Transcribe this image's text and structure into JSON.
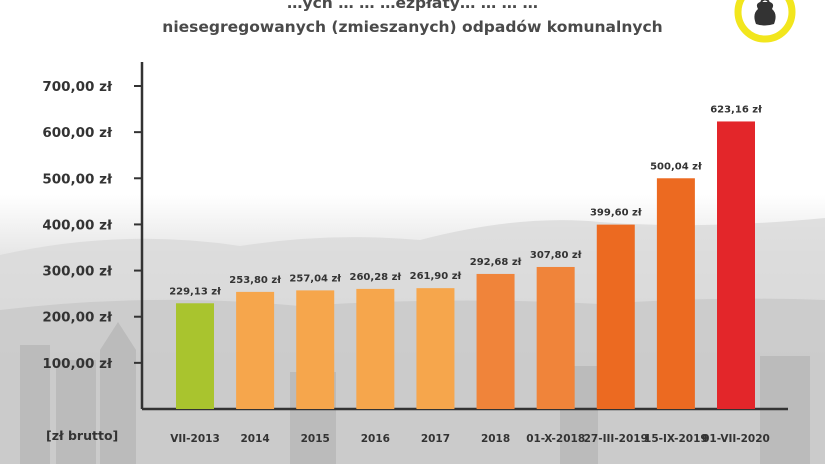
{
  "header": {
    "title_line1": "…ych … … …ezpłaty… … … …",
    "title_line2": "niesegregowanych (zmieszanych) odpadów komunalnych"
  },
  "colors": {
    "green": "#a9c42e",
    "orange_light": "#f6a64c",
    "orange_mid": "#f0843a",
    "orange_deep": "#ec6a21",
    "red": "#e3262a",
    "logo_ring": "#f2e61d",
    "axis": "#333333"
  },
  "logo": {
    "icon": "garbage-bag-icon"
  },
  "chart_data": {
    "type": "bar",
    "title": "",
    "unit_label": "[zł brutto]",
    "ylim": [
      0,
      700
    ],
    "yticks": [
      100,
      200,
      300,
      400,
      500,
      600,
      700
    ],
    "ytick_labels": [
      "100,00 zł",
      "200,00 zł",
      "300,00 zł",
      "400,00 zł",
      "500,00 zł",
      "600,00 zł",
      "700,00 zł"
    ],
    "categories": [
      "VII-2013",
      "2014",
      "2015",
      "2016",
      "2017",
      "2018",
      "01-X-2018",
      "27-III-2019",
      "15-IX-2019",
      "01-VII-2020"
    ],
    "values": [
      229.13,
      253.8,
      257.04,
      260.28,
      261.9,
      292.68,
      307.8,
      399.6,
      500.04,
      623.16
    ],
    "value_labels": [
      "229,13 zł",
      "253,80 zł",
      "257,04 zł",
      "260,28 zł",
      "261,90 zł",
      "292,68 zł",
      "307,80 zł",
      "399,60 zł",
      "500,04 zł",
      "623,16 zł"
    ],
    "bar_colors": [
      "#a9c42e",
      "#f6a64c",
      "#f6a64c",
      "#f6a64c",
      "#f6a64c",
      "#f0843a",
      "#f0843a",
      "#ec6a21",
      "#ec6a21",
      "#e3262a"
    ],
    "grid": false,
    "legend": "none"
  }
}
